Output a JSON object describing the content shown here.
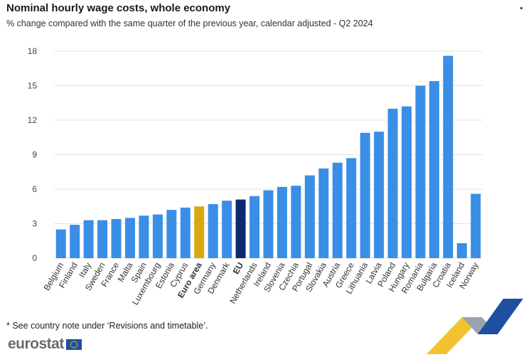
{
  "header": {
    "title": "Nominal hourly wage costs, whole economy",
    "subtitle": "% change compared with the same quarter of the previous year, calendar adjusted - Q2 2024"
  },
  "footer": {
    "note": "* See country note under ‘Revisions and timetable’.",
    "brand": "eurostat"
  },
  "colors": {
    "bar": "#3a8ee6",
    "euro_area": "#d9a70f",
    "eu": "#0e2a6e",
    "grid": "#e3e3e3"
  },
  "icons": [
    "eu-flag-icon",
    "eurostat-swoosh-icon"
  ],
  "chart_data": {
    "type": "bar",
    "title": "Nominal hourly wage costs, whole economy",
    "subtitle": "% change compared with the same quarter of the previous year, calendar adjusted - Q2 2024",
    "xlabel": "",
    "ylabel": "",
    "ylim": [
      0,
      18
    ],
    "yticks": [
      0,
      3,
      6,
      9,
      12,
      15,
      18
    ],
    "grid": true,
    "categories": [
      "Belgium",
      "Finland",
      "Italy",
      "Sweden",
      "France",
      "Malta",
      "Spain",
      "Luxembourg",
      "Estonia",
      "Cyprus",
      "Euro area",
      "Germany",
      "Denmark",
      "EU",
      "Netherlands",
      "Ireland",
      "Slovenia",
      "Czechia",
      "Portugal",
      "Slovakia",
      "Austria",
      "Greece",
      "Lithuania",
      "Latvia",
      "Poland",
      "Hungary",
      "Romania",
      "Bulgaria",
      "Croatia",
      "Iceland",
      "Norway"
    ],
    "values": [
      2.5,
      2.9,
      3.3,
      3.3,
      3.4,
      3.5,
      3.7,
      3.8,
      4.2,
      4.4,
      4.5,
      4.7,
      5.0,
      5.1,
      5.4,
      5.9,
      6.2,
      6.3,
      7.2,
      7.8,
      8.3,
      8.7,
      10.9,
      11.0,
      13.0,
      13.2,
      15.0,
      15.4,
      17.6,
      1.3,
      5.6
    ],
    "highlight": {
      "Euro area": "euro_area",
      "EU": "eu"
    },
    "bold_labels": [
      "Euro area",
      "EU"
    ]
  }
}
